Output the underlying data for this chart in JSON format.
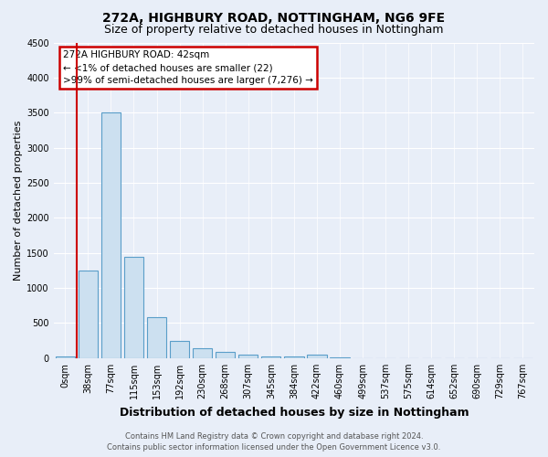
{
  "title1": "272A, HIGHBURY ROAD, NOTTINGHAM, NG6 9FE",
  "title2": "Size of property relative to detached houses in Nottingham",
  "xlabel": "Distribution of detached houses by size in Nottingham",
  "ylabel": "Number of detached properties",
  "footnote1": "Contains HM Land Registry data © Crown copyright and database right 2024.",
  "footnote2": "Contains public sector information licensed under the Open Government Licence v3.0.",
  "bar_labels": [
    "0sqm",
    "38sqm",
    "77sqm",
    "115sqm",
    "153sqm",
    "192sqm",
    "230sqm",
    "268sqm",
    "307sqm",
    "345sqm",
    "384sqm",
    "422sqm",
    "460sqm",
    "499sqm",
    "537sqm",
    "575sqm",
    "614sqm",
    "652sqm",
    "690sqm",
    "729sqm",
    "767sqm"
  ],
  "bar_values": [
    22,
    1250,
    3500,
    1450,
    580,
    250,
    140,
    85,
    55,
    30,
    20,
    55,
    5,
    0,
    0,
    0,
    0,
    0,
    0,
    0,
    0
  ],
  "bar_color": "#cce0f0",
  "bar_edgecolor": "#5a9ec9",
  "highlight_index": 0,
  "highlight_color": "#cc0000",
  "annotation_line1": "272A HIGHBURY ROAD: 42sqm",
  "annotation_line2": "← <1% of detached houses are smaller (22)",
  "annotation_line3": ">99% of semi-detached houses are larger (7,276) →",
  "annotation_box_edgecolor": "#cc0000",
  "annotation_box_facecolor": "white",
  "ylim": [
    0,
    4500
  ],
  "yticks": [
    0,
    500,
    1000,
    1500,
    2000,
    2500,
    3000,
    3500,
    4000,
    4500
  ],
  "background_color": "#e8eef8",
  "plot_bg_color": "#e8eef8",
  "grid_color": "white",
  "title_fontsize": 10,
  "subtitle_fontsize": 9,
  "xlabel_fontsize": 9,
  "ylabel_fontsize": 8,
  "tick_fontsize": 7,
  "annotation_fontsize": 7.5,
  "footnote_fontsize": 6
}
